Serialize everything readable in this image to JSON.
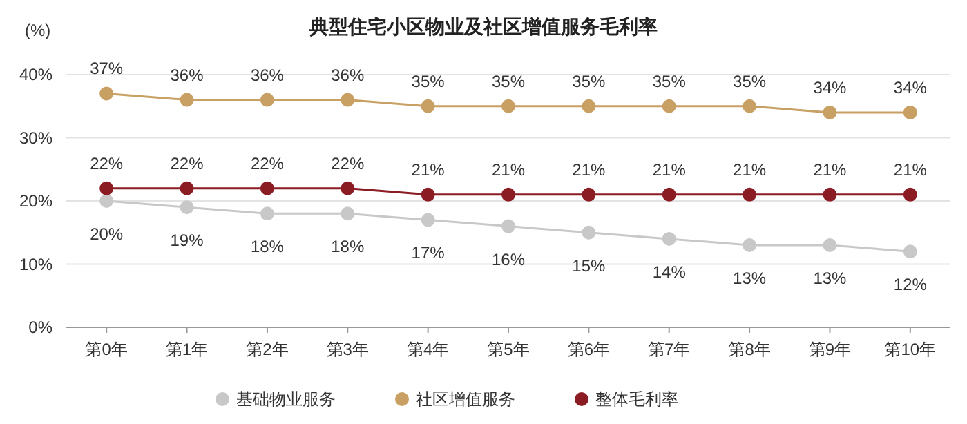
{
  "chart_data": {
    "type": "line",
    "title": "典型住宅小区物业及社区增值服务毛利率",
    "ylabel": "(%)",
    "categories": [
      "第0年",
      "第1年",
      "第2年",
      "第3年",
      "第4年",
      "第5年",
      "第6年",
      "第7年",
      "第8年",
      "第9年",
      "第10年"
    ],
    "series": [
      {
        "name": "基础物业服务",
        "color": "#c8c8c8",
        "values": [
          20,
          19,
          18,
          18,
          17,
          16,
          15,
          14,
          13,
          13,
          12
        ],
        "value_labels": [
          "20%",
          "19%",
          "18%",
          "18%",
          "17%",
          "16%",
          "15%",
          "14%",
          "13%",
          "13%",
          "12%"
        ]
      },
      {
        "name": "社区增值服务",
        "color": "#c9a063",
        "values": [
          37,
          36,
          36,
          36,
          35,
          35,
          35,
          35,
          35,
          34,
          34
        ],
        "value_labels": [
          "37%",
          "36%",
          "36%",
          "36%",
          "35%",
          "35%",
          "35%",
          "35%",
          "35%",
          "34%",
          "34%"
        ]
      },
      {
        "name": "整体毛利率",
        "color": "#8b1c24",
        "values": [
          22,
          22,
          22,
          22,
          21,
          21,
          21,
          21,
          21,
          21,
          21
        ],
        "value_labels": [
          "22%",
          "22%",
          "22%",
          "22%",
          "21%",
          "21%",
          "21%",
          "21%",
          "21%",
          "21%",
          "21%"
        ]
      }
    ],
    "ylim": [
      0,
      40
    ],
    "yticks": [
      {
        "value": 0,
        "label": "0%"
      },
      {
        "value": 10,
        "label": "10%"
      },
      {
        "value": 20,
        "label": "20%"
      },
      {
        "value": 30,
        "label": "30%"
      },
      {
        "value": 40,
        "label": "40%"
      }
    ],
    "grid": "y",
    "legend": "bottom",
    "marker": "circle",
    "line_style": "solid"
  }
}
